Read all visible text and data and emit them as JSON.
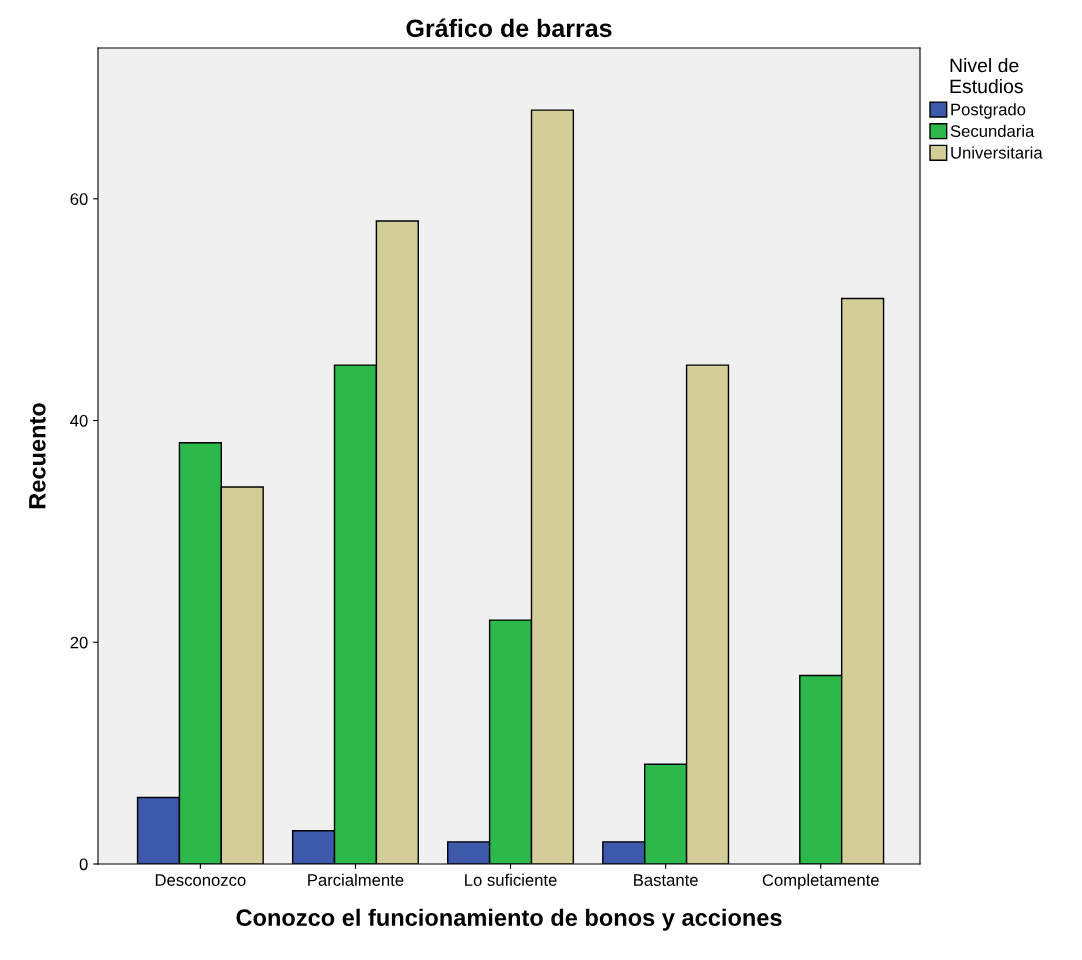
{
  "chart_data": {
    "type": "bar",
    "title": "Gráfico de barras",
    "xlabel": "Conozco el funcionamiento de bonos y acciones",
    "ylabel": "Recuento",
    "legend_title": "Nivel de\nEstudios",
    "categories": [
      "Desconozco",
      "Parcialmente",
      "Lo suficiente",
      "Bastante",
      "Completamente"
    ],
    "series": [
      {
        "name": "Postgrado",
        "color": "#3e58ac",
        "values": [
          6,
          3,
          2,
          2,
          null
        ]
      },
      {
        "name": "Secundaria",
        "color": "#2db84b",
        "values": [
          38,
          45,
          22,
          9,
          17
        ]
      },
      {
        "name": "Universitaria",
        "color": "#d3ce97",
        "values": [
          34,
          58,
          68,
          45,
          51
        ]
      }
    ],
    "ylim": [
      0,
      73.6
    ],
    "yticks": [
      0,
      20,
      40,
      60
    ],
    "grid": false,
    "legend": "top right"
  }
}
